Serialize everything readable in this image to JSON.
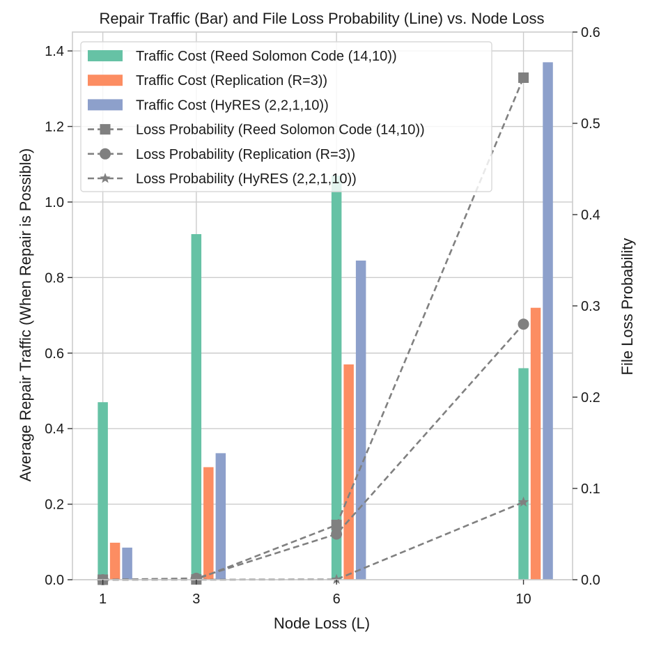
{
  "chart_data": {
    "type": "bar",
    "title": "Repair Traffic (Bar) and File Loss Probability (Line) vs. Node Loss",
    "xlabel": "Node Loss (L)",
    "ylabel": "Average Repair Traffic (When Repair is Possible)",
    "y2label": "File Loss Probability",
    "categories": [
      1,
      3,
      6,
      10
    ],
    "category_labels": [
      "1",
      "3",
      "6",
      "10"
    ],
    "xlim": [
      0.35,
      11.05
    ],
    "ylim": [
      0,
      1.45
    ],
    "y2lim": [
      0,
      0.6
    ],
    "yticks": [
      0.0,
      0.2,
      0.4,
      0.6,
      0.8,
      1.0,
      1.2,
      1.4
    ],
    "ytick_labels": [
      "0.0",
      "0.2",
      "0.4",
      "0.6",
      "0.8",
      "1.0",
      "1.2",
      "1.4"
    ],
    "y2ticks": [
      0.0,
      0.1,
      0.2,
      0.3,
      0.4,
      0.5,
      0.6
    ],
    "y2tick_labels": [
      "0.0",
      "0.1",
      "0.2",
      "0.3",
      "0.4",
      "0.5",
      "0.6"
    ],
    "grid": true,
    "legend_position": "top-left",
    "bar_series": [
      {
        "name": "Traffic Cost (Reed Solomon Code (14,10))",
        "values": [
          0.47,
          0.915,
          1.07,
          0.56
        ],
        "color": "#66c2a5"
      },
      {
        "name": "Traffic Cost (Replication (R=3))",
        "values": [
          0.098,
          0.298,
          0.57,
          0.72
        ],
        "color": "#fc8d62"
      },
      {
        "name": "Traffic Cost (HyRES (2,2,1,10))",
        "values": [
          0.085,
          0.335,
          0.845,
          1.37
        ],
        "color": "#8da0cb"
      }
    ],
    "line_series": [
      {
        "name": "Loss Probability (Reed Solomon Code (14,10))",
        "values": [
          0.0,
          0.0003,
          0.06,
          0.55
        ],
        "marker": "square",
        "color": "#808080"
      },
      {
        "name": "Loss Probability (Replication (R=3))",
        "values": [
          0.0,
          0.0015,
          0.05,
          0.28
        ],
        "marker": "circle",
        "color": "#808080"
      },
      {
        "name": "Loss Probability (HyRES (2,2,1,10))",
        "values": [
          0.0,
          0.0,
          0.0003,
          0.085
        ],
        "marker": "star",
        "color": "#808080"
      }
    ]
  }
}
